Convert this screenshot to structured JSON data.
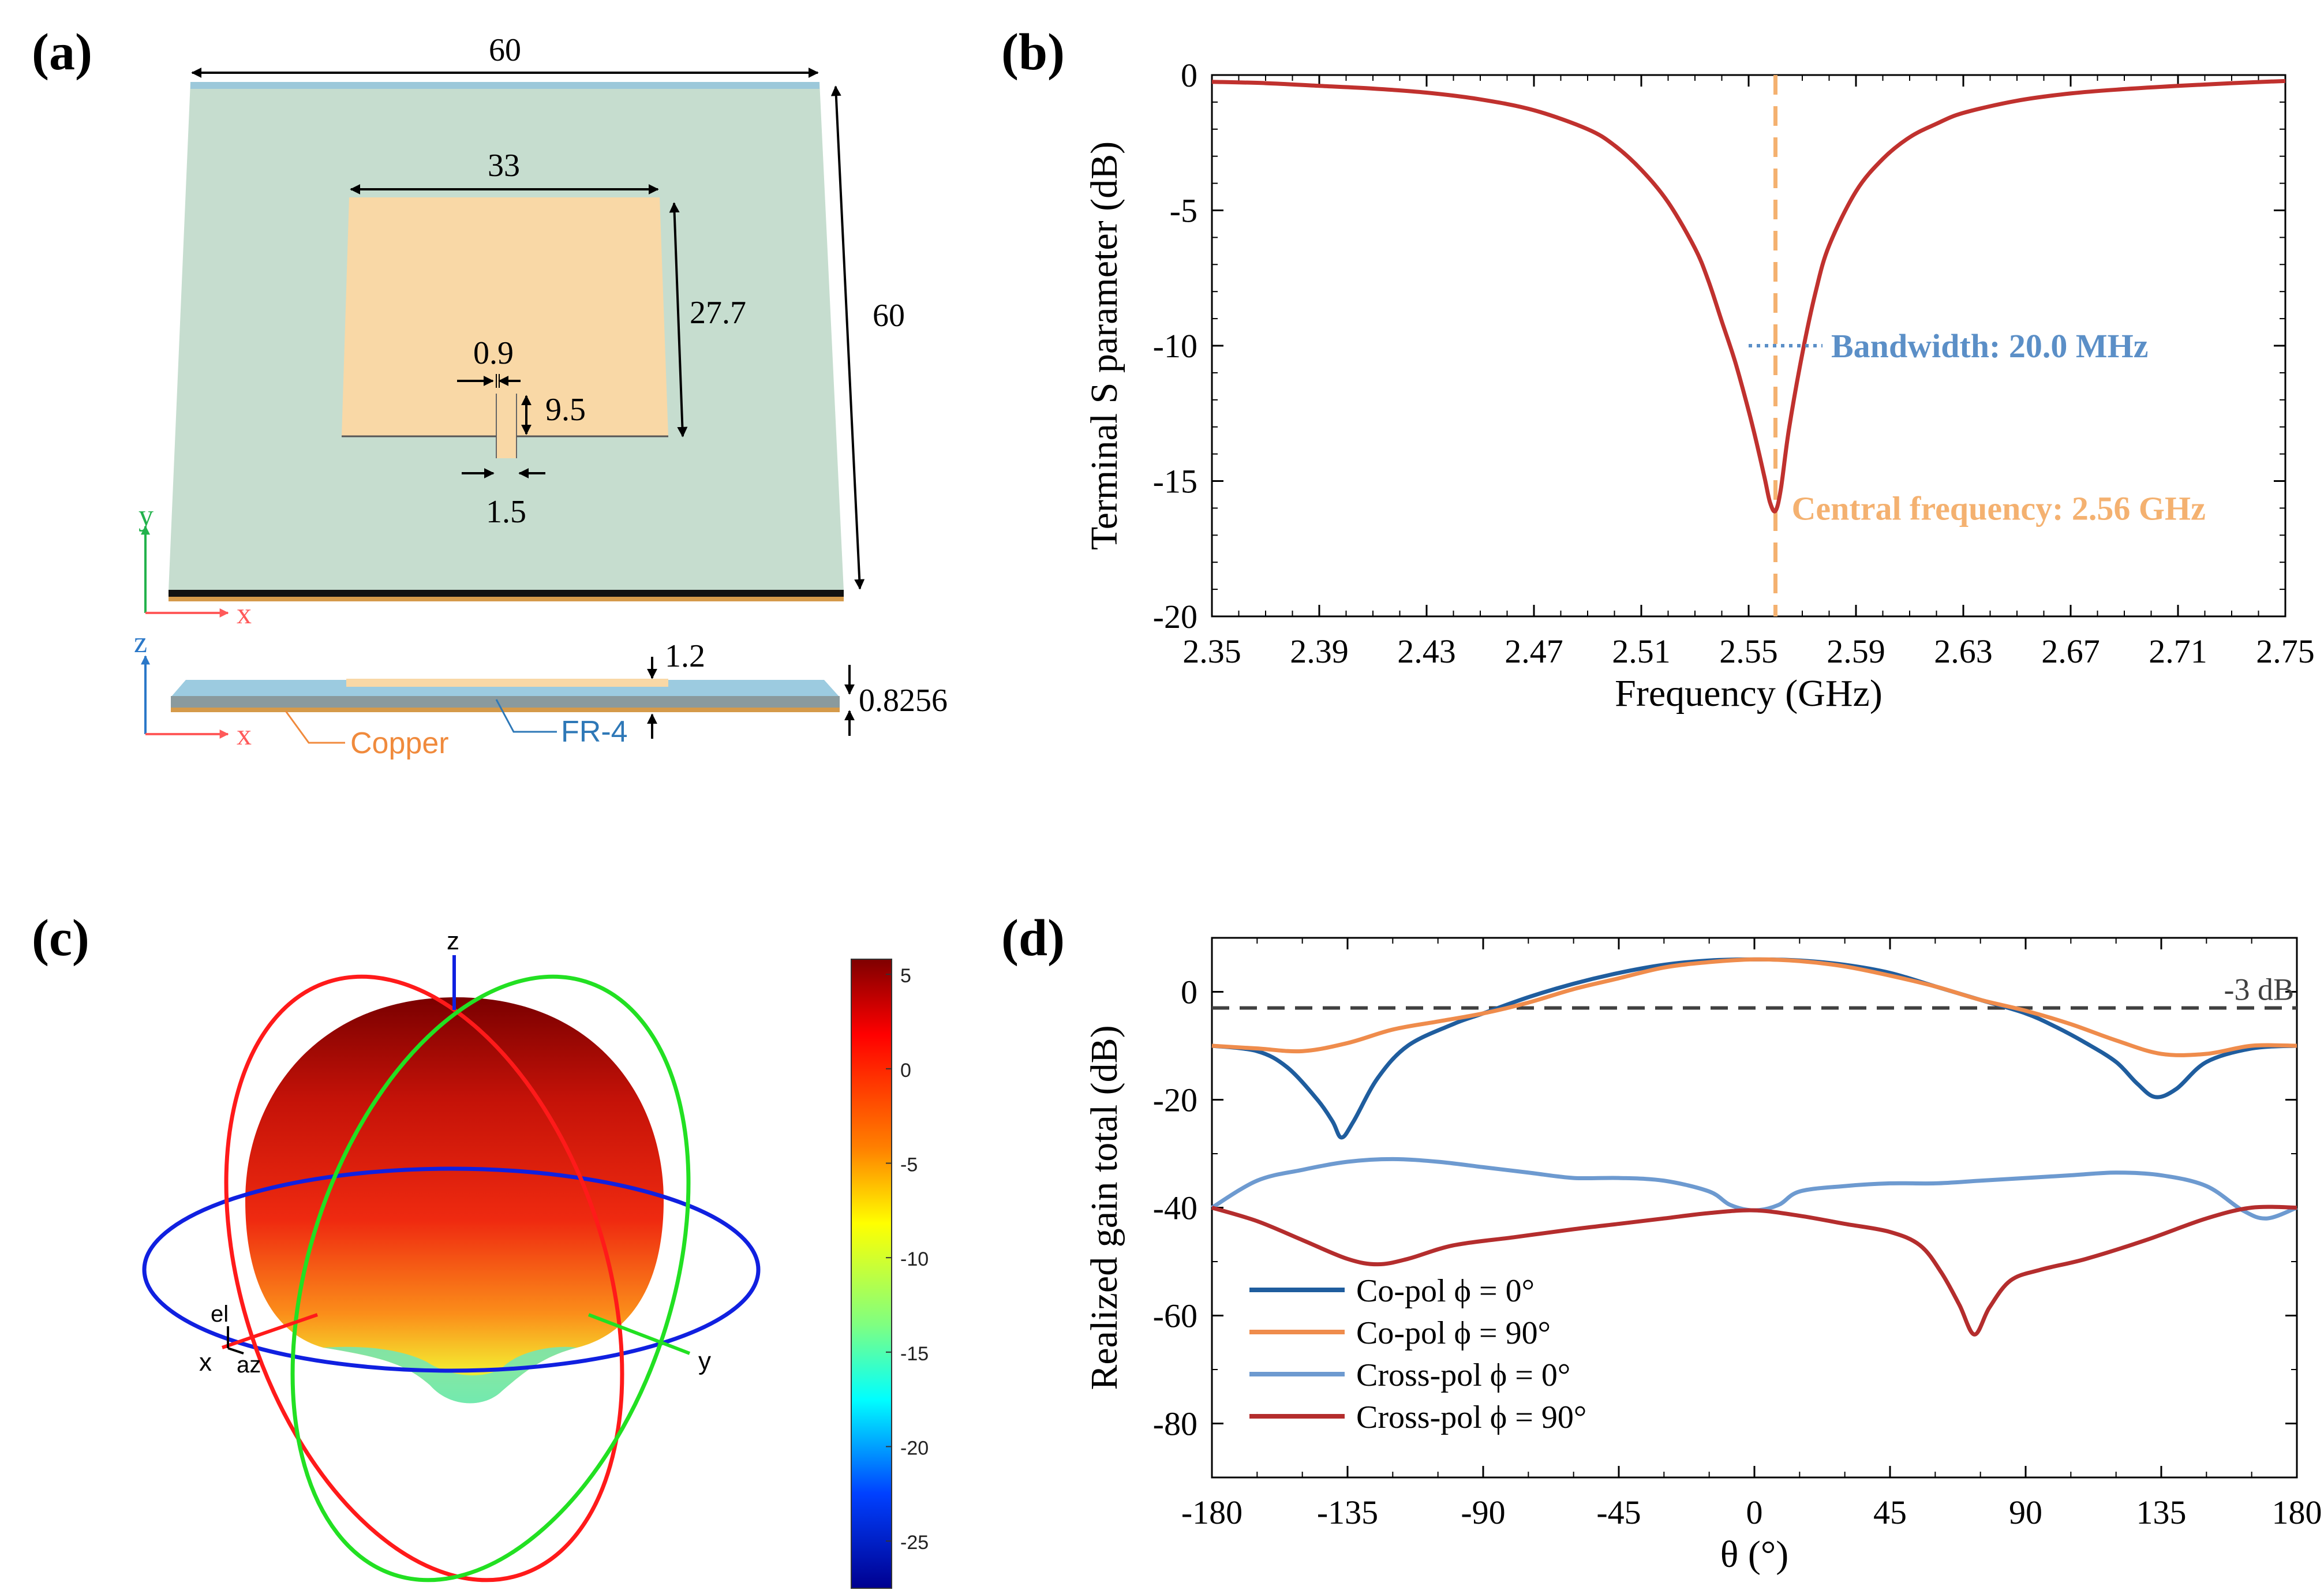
{
  "panels": {
    "a": {
      "label": "(a)",
      "dims": {
        "width_top": "60",
        "height_right": "60",
        "patch_width": "33",
        "patch_height": "27.7",
        "slot_width": "0.9",
        "slot_length": "9.5",
        "feed_width": "1.5",
        "copper_thickness": "1.2",
        "substrate_thickness": "0.8256"
      },
      "axes": {
        "top_y": "y",
        "top_x": "x",
        "side_z": "z",
        "side_x": "x"
      },
      "materials": {
        "copper": "Copper",
        "substrate": "FR-4"
      },
      "colors": {
        "substrate": "#c9ddd0",
        "patch": "#f7d8a6",
        "copper_label": "#f08a3c",
        "fr4_label": "#2e78b7"
      }
    },
    "b": {
      "label": "(b)"
    },
    "c": {
      "label": "(c)",
      "axis_labels": {
        "z": "z",
        "x": "x",
        "y": "y",
        "el": "el",
        "az": "az"
      },
      "colorbar": {
        "ticks": [
          "5",
          "0",
          "-5",
          "-10",
          "-15",
          "-20",
          "-25"
        ],
        "values": [
          5,
          0,
          -5,
          -10,
          -15,
          -20,
          -25
        ],
        "min": -27.5,
        "max": 5.8
      },
      "colors": {
        "x_ring": "#ff1a1a",
        "y_ring": "#22e022",
        "z_ring": "#1020e0"
      }
    },
    "d": {
      "label": "(d)"
    }
  },
  "chart_data": [
    {
      "id": "b",
      "type": "line",
      "xlabel": "Frequency (GHz)",
      "ylabel": "Terminal S parameter (dB)",
      "xlim": [
        2.35,
        2.75
      ],
      "ylim": [
        -20,
        0
      ],
      "xticks": [
        "2.35",
        "2.39",
        "2.43",
        "2.47",
        "2.51",
        "2.55",
        "2.59",
        "2.63",
        "2.67",
        "2.71",
        "2.75"
      ],
      "xtick_values": [
        2.35,
        2.39,
        2.43,
        2.47,
        2.51,
        2.55,
        2.59,
        2.63,
        2.67,
        2.71,
        2.75
      ],
      "yticks": [
        "0",
        "-5",
        "-10",
        "-15",
        "-20"
      ],
      "ytick_values": [
        0,
        -5,
        -10,
        -15,
        -20
      ],
      "series": [
        {
          "color": "#c0312e",
          "x": [
            2.35,
            2.37,
            2.39,
            2.41,
            2.43,
            2.45,
            2.47,
            2.49,
            2.5,
            2.51,
            2.52,
            2.53,
            2.535,
            2.54,
            2.545,
            2.55,
            2.553,
            2.556,
            2.558,
            2.56,
            2.562,
            2.565,
            2.57,
            2.575,
            2.58,
            2.59,
            2.6,
            2.61,
            2.62,
            2.63,
            2.65,
            2.67,
            2.69,
            2.71,
            2.73,
            2.75
          ],
          "y": [
            -0.25,
            -0.3,
            -0.4,
            -0.5,
            -0.65,
            -0.9,
            -1.3,
            -2.0,
            -2.6,
            -3.5,
            -4.7,
            -6.4,
            -7.6,
            -9.1,
            -10.6,
            -12.4,
            -13.6,
            -14.9,
            -15.8,
            -16.1,
            -15.3,
            -13.1,
            -10.3,
            -8.0,
            -6.3,
            -4.3,
            -3.1,
            -2.3,
            -1.8,
            -1.4,
            -0.95,
            -0.68,
            -0.52,
            -0.4,
            -0.3,
            -0.22
          ]
        }
      ],
      "annotations": {
        "center_freq": 2.56,
        "bandwidth_y": -10,
        "bandwidth_x": [
          2.55,
          2.57
        ],
        "bandwidth_text": "Bandwidth: 20.0 MHz",
        "center_text": "Central frequency: 2.56 GHz",
        "bandwidth_color": "#5b8fc7",
        "center_color": "#f4b170"
      }
    },
    {
      "id": "d",
      "type": "line",
      "xlabel": "θ (°)",
      "ylabel": "Realized gain total (dB)",
      "xlim": [
        -180,
        180
      ],
      "ylim": [
        -90,
        10
      ],
      "xticks": [
        "-180",
        "-135",
        "-90",
        "-45",
        "0",
        "45",
        "90",
        "135",
        "180"
      ],
      "xtick_values": [
        -180,
        -135,
        -90,
        -45,
        0,
        45,
        90,
        135,
        180
      ],
      "yticks": [
        "0",
        "-20",
        "-40",
        "-60",
        "-80"
      ],
      "ytick_values": [
        0,
        -20,
        -40,
        -60,
        -80
      ],
      "reference_line": {
        "y": -3,
        "label": "-3 dB",
        "color": "#404040"
      },
      "series": [
        {
          "name": "Co-pol ϕ = 0°",
          "color": "#1f5d9e",
          "x": [
            -180,
            -165,
            -155,
            -145,
            -140,
            -137,
            -133,
            -125,
            -115,
            -100,
            -90,
            -75,
            -60,
            -45,
            -30,
            -15,
            0,
            15,
            30,
            45,
            60,
            75,
            90,
            100,
            110,
            120,
            127,
            133,
            140,
            150,
            165,
            180
          ],
          "y": [
            -10,
            -11,
            -14,
            -20,
            -24,
            -27,
            -24,
            -16,
            -10,
            -6,
            -4,
            -1,
            1.5,
            3.5,
            5,
            5.8,
            6,
            5.8,
            5,
            3.5,
            1,
            -1.5,
            -4,
            -6.5,
            -9.5,
            -13,
            -17,
            -19.5,
            -18,
            -13,
            -10.5,
            -10
          ]
        },
        {
          "name": "Co-pol ϕ = 90°",
          "color": "#ef8c4c",
          "x": [
            -180,
            -165,
            -150,
            -135,
            -120,
            -105,
            -90,
            -75,
            -60,
            -45,
            -30,
            -15,
            0,
            15,
            30,
            45,
            60,
            75,
            90,
            105,
            120,
            135,
            150,
            165,
            180
          ],
          "y": [
            -10,
            -10.5,
            -11,
            -9.5,
            -7,
            -5.5,
            -4,
            -2,
            0.5,
            2.5,
            4.5,
            5.5,
            6,
            5.7,
            4.7,
            3,
            1,
            -1.5,
            -3.5,
            -6,
            -9,
            -11.5,
            -11.5,
            -10,
            -10
          ]
        },
        {
          "name": "Cross-pol ϕ = 0°",
          "color": "#6d9ad0",
          "x": [
            -180,
            -165,
            -150,
            -135,
            -120,
            -105,
            -90,
            -75,
            -60,
            -45,
            -30,
            -15,
            -8,
            0,
            8,
            15,
            30,
            45,
            60,
            75,
            90,
            105,
            120,
            135,
            150,
            162,
            170,
            180
          ],
          "y": [
            -40,
            -35,
            -33,
            -31.5,
            -31,
            -31.5,
            -32.5,
            -33.5,
            -34.5,
            -34.5,
            -35,
            -37,
            -39.5,
            -40.5,
            -39.5,
            -37,
            -36,
            -35.5,
            -35.5,
            -35,
            -34.5,
            -34,
            -33.5,
            -34,
            -36,
            -40.5,
            -42,
            -40
          ]
        },
        {
          "name": "Cross-pol ϕ = 90°",
          "color": "#b42d2d",
          "x": [
            -180,
            -165,
            -150,
            -135,
            -125,
            -115,
            -100,
            -80,
            -60,
            -45,
            -30,
            -15,
            0,
            15,
            30,
            45,
            55,
            62,
            68,
            73,
            78,
            85,
            95,
            110,
            130,
            150,
            165,
            180
          ],
          "y": [
            -40,
            -42.5,
            -46,
            -49.5,
            -50.5,
            -49.5,
            -47,
            -45.5,
            -44,
            -43,
            -42,
            -41,
            -40.5,
            -41.5,
            -43,
            -44.5,
            -47,
            -52,
            -58,
            -63.5,
            -58.5,
            -53.5,
            -51.5,
            -49.5,
            -46,
            -42,
            -40,
            -40
          ]
        }
      ],
      "legend_position": "lower-left"
    }
  ]
}
